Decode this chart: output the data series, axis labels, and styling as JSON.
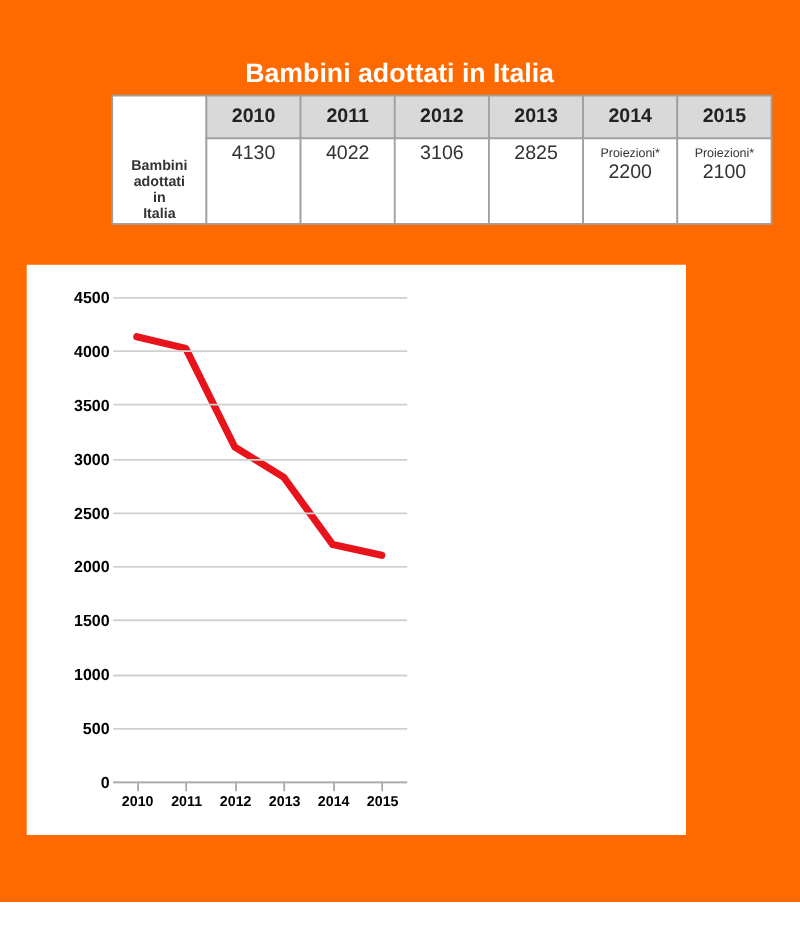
{
  "chart_data": {
    "type": "line",
    "title": "Bambini adottati in Italia",
    "categories": [
      "2010",
      "2011",
      "2012",
      "2013",
      "2014",
      "2015"
    ],
    "series": [
      {
        "name": "Bambini adottati in Italia",
        "color": "#e8141b",
        "values": [
          4130,
          4022,
          3106,
          2825,
          2200,
          2100
        ]
      }
    ],
    "value_labels": [
      "4130",
      "4022",
      "3106",
      "2825",
      "Proiezioni*\n2200",
      "Proiezioni*\n2100"
    ],
    "ylim": [
      0,
      4500
    ],
    "yticks": [
      0,
      500,
      1000,
      1500,
      2000,
      2500,
      3000,
      3500,
      4000,
      4500
    ],
    "grid": "y",
    "legend": false,
    "marker": "none",
    "line_style": "solid"
  }
}
